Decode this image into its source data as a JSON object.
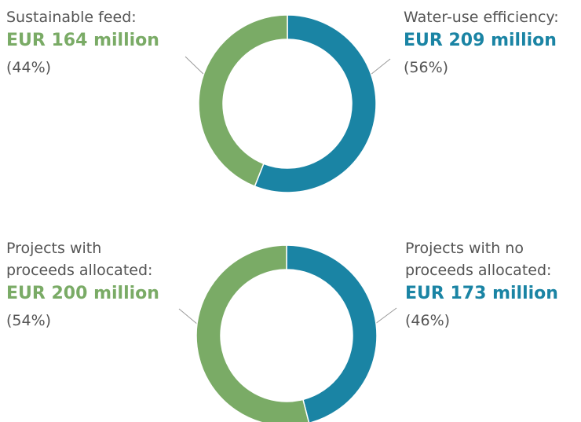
{
  "chart_data": [
    {
      "type": "pie",
      "donut": true,
      "categories": [
        "Sustainable feed:",
        "Water-use efficiency:"
      ],
      "amounts": [
        "EUR 164 million",
        "EUR 209 million"
      ],
      "values": [
        44,
        56
      ],
      "value_labels": [
        "(44%)",
        "(56%)"
      ],
      "colors": [
        "#7aab66",
        "#1a84a4"
      ]
    },
    {
      "type": "pie",
      "donut": true,
      "categories": [
        "Projects with\nproceeds allocated:",
        "Projects with no\nproceeds allocated:"
      ],
      "amounts": [
        "EUR 200 million",
        "EUR 173 million"
      ],
      "values": [
        54,
        46
      ],
      "value_labels": [
        "(54%)",
        "(46%)"
      ],
      "colors": [
        "#7aab66",
        "#1a84a4"
      ]
    }
  ]
}
